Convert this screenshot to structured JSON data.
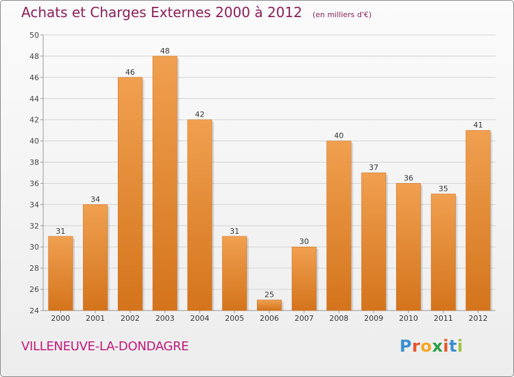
{
  "chart_data": {
    "type": "bar",
    "title": "Achats et Charges Externes 2000 à 2012",
    "subtitle": "(en milliers d'€)",
    "categories": [
      "2000",
      "2001",
      "2002",
      "2003",
      "2004",
      "2005",
      "2006",
      "2007",
      "2008",
      "2009",
      "2010",
      "2011",
      "2012"
    ],
    "values": [
      31,
      34,
      46,
      48,
      42,
      31,
      25,
      30,
      40,
      37,
      36,
      35,
      41
    ],
    "ylim": [
      24,
      50
    ],
    "yticks": [
      24,
      26,
      28,
      30,
      32,
      34,
      36,
      38,
      40,
      42,
      44,
      46,
      48,
      50
    ],
    "grid": true,
    "bar_color": "#f0a050",
    "bar_color_dark": "#d4741c"
  },
  "footer": {
    "place": "VILLENEUVE-LA-DONDAGRE"
  },
  "brand": {
    "letters": [
      "P",
      "r",
      "o",
      "x",
      "i",
      "t",
      "i"
    ],
    "colors": [
      "#3a8fd0",
      "#e8542a",
      "#f5a623",
      "#2e9e47",
      "#e8542a",
      "#3a8fd0",
      "#9bc43c"
    ]
  }
}
